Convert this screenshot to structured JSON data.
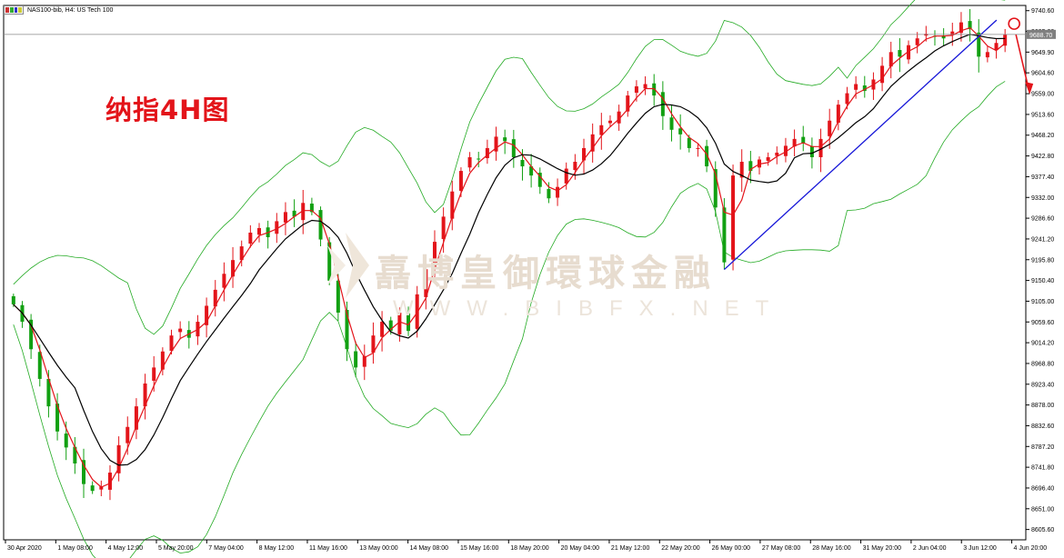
{
  "header": {
    "symbol_label": "NAS100-bib, H4:  US Tech 100"
  },
  "annotation": {
    "title": "纳指4H图"
  },
  "watermark": {
    "chinese": "嚞博皇御環球金融",
    "english": "WWW.BIBFX.NET"
  },
  "colors": {
    "bull": "#e3141a",
    "bear": "#12a012",
    "ma_fast": "#e3141a",
    "ma_slow": "#000000",
    "bands": "#22aa22",
    "trendline": "#1515d8",
    "price_line": "#888888",
    "current_price_bg": "#808080"
  },
  "chart_data": {
    "type": "candlestick",
    "timeframe": "H4",
    "ylim": [
      8583,
      9752
    ],
    "yticks": [
      "9740.60",
      "9695.20",
      "9649.90",
      "9604.60",
      "9559.00",
      "9513.60",
      "9468.20",
      "9422.80",
      "9377.40",
      "9332.00",
      "9286.60",
      "9241.20",
      "9195.80",
      "9150.40",
      "9105.00",
      "9059.60",
      "9014.20",
      "8968.80",
      "8923.40",
      "8878.00",
      "8832.60",
      "8787.20",
      "8741.80",
      "8696.40",
      "8651.00",
      "8605.60"
    ],
    "xticks": [
      "30 Apr 2020",
      "1 May 08:00",
      "4 May 12:00",
      "5 May 20:00",
      "7 May 04:00",
      "8 May 12:00",
      "11 May 16:00",
      "13 May 00:00",
      "14 May 08:00",
      "15 May 16:00",
      "18 May 20:00",
      "20 May 04:00",
      "21 May 12:00",
      "22 May 20:00",
      "26 May 00:00",
      "27 May 08:00",
      "28 May 16:00",
      "31 May 20:00",
      "2 Jun 04:00",
      "3 Jun 12:00",
      "4 Jun 20:00"
    ],
    "current_price": "9688.70",
    "closes": [
      9098,
      9060,
      9000,
      8935,
      8875,
      8820,
      8785,
      8750,
      8705,
      8690,
      8700,
      8730,
      8790,
      8830,
      8875,
      8925,
      8960,
      8995,
      9030,
      9045,
      9025,
      9060,
      9095,
      9130,
      9165,
      9195,
      9225,
      9255,
      9265,
      9245,
      9280,
      9300,
      9290,
      9320,
      9300,
      9240,
      9150,
      9080,
      9000,
      8960,
      8985,
      9030,
      9060,
      9040,
      9080,
      9040,
      9120,
      9175,
      9235,
      9290,
      9345,
      9390,
      9420,
      9415,
      9440,
      9465,
      9455,
      9420,
      9400,
      9380,
      9355,
      9330,
      9355,
      9395,
      9410,
      9440,
      9470,
      9490,
      9500,
      9520,
      9555,
      9575,
      9580,
      9555,
      9510,
      9480,
      9470,
      9440,
      9440,
      9400,
      9310,
      9190,
      9380,
      9410,
      9390,
      9415,
      9420,
      9430,
      9445,
      9460,
      9450,
      9420,
      9460,
      9500,
      9535,
      9560,
      9580,
      9565,
      9590,
      9620,
      9650,
      9640,
      9665,
      9680,
      9690,
      9685,
      9680,
      9695,
      9715,
      9700,
      9640,
      9650,
      9670,
      9688
    ]
  }
}
